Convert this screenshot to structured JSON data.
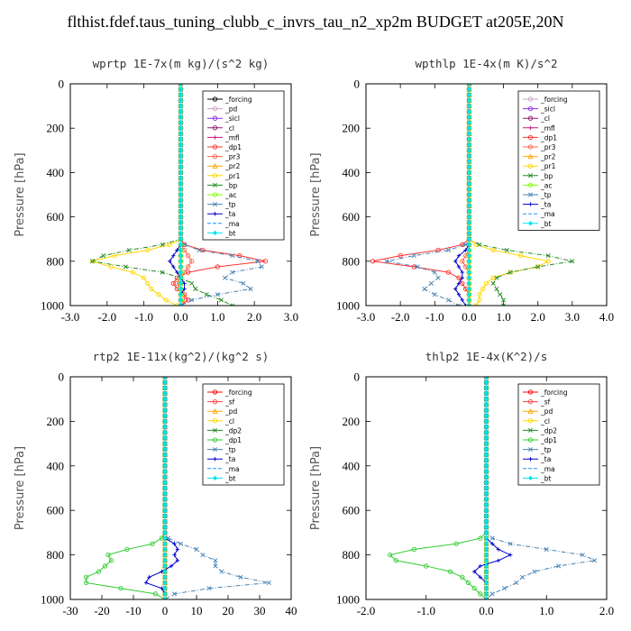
{
  "title": "flthist.fdef.taus_tuning_clubb_c_invrs_tau_n2_xp2m  BUDGET at205E,20N",
  "chart_data": [
    {
      "type": "line",
      "title": "wprtp  1E-7x(m kg)/(s^2 kg)",
      "ylabel": "Pressure [hPa]",
      "xlim": [
        -3.0,
        3.0
      ],
      "ylim": [
        1000,
        0
      ],
      "xticks": [
        "-3.0",
        "-2.0",
        "-1.0",
        "0.0",
        "1.0",
        "2.0",
        "3.0"
      ],
      "yticks": [
        "0",
        "200",
        "400",
        "600",
        "800",
        "1000"
      ],
      "legend_position": "top-right",
      "levels": [
        700,
        725,
        750,
        775,
        800,
        825,
        850,
        875,
        900,
        925,
        950,
        975,
        1000
      ],
      "series": [
        {
          "name": "_forcing",
          "color": "#000000",
          "marker": "o",
          "values": [
            0,
            0,
            0,
            0,
            0,
            0,
            0,
            0,
            0,
            0,
            0,
            0,
            0
          ]
        },
        {
          "name": "_pd",
          "color": "#c8a2c8",
          "marker": "o",
          "values": [
            0,
            0,
            0,
            0,
            0,
            0,
            0,
            0,
            0,
            0,
            0,
            0,
            0
          ]
        },
        {
          "name": "_sicl",
          "color": "#8a2be2",
          "marker": "o",
          "values": [
            0,
            0,
            0,
            0,
            0,
            0,
            0,
            0,
            0,
            0,
            0,
            0,
            0
          ]
        },
        {
          "name": "_cl",
          "color": "#8b1a6b",
          "marker": "o",
          "values": [
            0,
            0,
            0,
            0,
            0,
            0,
            0,
            0,
            0,
            0,
            0,
            0,
            0
          ]
        },
        {
          "name": "_mfl",
          "color": "#c71585",
          "marker": "+",
          "values": [
            0,
            0,
            0,
            0,
            0,
            0,
            0,
            0,
            0,
            0,
            0,
            0,
            0
          ]
        },
        {
          "name": "_dp1",
          "color": "#ff3030",
          "marker": "o",
          "values": [
            0,
            0.1,
            0.6,
            1.6,
            2.3,
            1.0,
            0.2,
            -0.1,
            -0.2,
            -0.1,
            0.1,
            0.2,
            0
          ]
        },
        {
          "name": "_pr3",
          "color": "#ff6347",
          "marker": "o",
          "values": [
            0,
            0,
            0.1,
            0.2,
            0.3,
            0.2,
            0.1,
            0,
            -0.1,
            0,
            0.1,
            0.1,
            0
          ]
        },
        {
          "name": "_pr2",
          "color": "#ffa500",
          "marker": "^",
          "values": [
            0,
            0,
            0,
            0,
            0,
            0,
            0,
            0,
            0,
            0,
            0,
            0,
            0
          ]
        },
        {
          "name": "_pr1",
          "color": "#ffd700",
          "marker": "o",
          "values": [
            0,
            -0.3,
            -0.9,
            -1.8,
            -2.4,
            -1.9,
            -1.3,
            -1.0,
            -0.9,
            -0.8,
            -0.6,
            -0.4,
            -0.1
          ]
        },
        {
          "name": "_bp",
          "color": "#228b22",
          "marker": "x",
          "values": [
            0,
            -0.5,
            -1.4,
            -2.1,
            -2.4,
            -1.5,
            -0.5,
            0,
            0.3,
            0.4,
            0.7,
            1.1,
            1.4
          ]
        },
        {
          "name": "_ac",
          "color": "#7fff00",
          "marker": "o",
          "values": [
            0,
            0,
            0,
            0,
            0,
            0,
            0,
            0,
            0,
            0,
            0,
            0,
            0
          ]
        },
        {
          "name": "_tp",
          "color": "#4682b4",
          "marker": "x",
          "values": [
            0,
            0.1,
            0.5,
            1.4,
            2.1,
            2.2,
            1.4,
            1.2,
            1.7,
            1.9,
            1.0,
            0.3,
            0
          ]
        },
        {
          "name": "_ta",
          "color": "#0000cd",
          "marker": "+",
          "values": [
            0,
            0,
            -0.1,
            -0.2,
            -0.3,
            -0.2,
            -0.1,
            0,
            0.1,
            0.1,
            0,
            0,
            0
          ]
        },
        {
          "name": "_ma",
          "color": "#1e90ff",
          "marker": "-",
          "values": [
            0,
            0,
            0,
            0,
            0,
            0,
            0,
            0,
            0,
            0,
            0,
            0,
            0
          ]
        },
        {
          "name": "_bt",
          "color": "#00e5ee",
          "marker": "D",
          "values": [
            0,
            0,
            0,
            0,
            0,
            0,
            0,
            0,
            0,
            0,
            0,
            0,
            0
          ]
        }
      ]
    },
    {
      "type": "line",
      "title": "wpthlp  1E-4x(m K)/s^2",
      "ylabel": "Pressure [hPa]",
      "xlim": [
        -3.0,
        4.0
      ],
      "ylim": [
        1000,
        0
      ],
      "xticks": [
        "-3.0",
        "-2.0",
        "-1.0",
        "0.0",
        "1.0",
        "2.0",
        "3.0",
        "4.0"
      ],
      "yticks": [
        "0",
        "200",
        "400",
        "600",
        "800",
        "1000"
      ],
      "legend_position": "top-right",
      "levels": [
        700,
        725,
        750,
        775,
        800,
        825,
        850,
        875,
        900,
        925,
        950,
        975,
        1000
      ],
      "series": [
        {
          "name": "_forcing",
          "color": "#c8a2c8",
          "marker": "o",
          "values": [
            0,
            0,
            0,
            0,
            0,
            0,
            0,
            0,
            0,
            0,
            0,
            0,
            0
          ]
        },
        {
          "name": "_sicl",
          "color": "#8a2be2",
          "marker": "o",
          "values": [
            0,
            0,
            0,
            0,
            0,
            0,
            0,
            0,
            0,
            0,
            0,
            0,
            0
          ]
        },
        {
          "name": "_cl",
          "color": "#8b1a6b",
          "marker": "o",
          "values": [
            0,
            0,
            0,
            0,
            0,
            0,
            0,
            0,
            0,
            0,
            0,
            0,
            0
          ]
        },
        {
          "name": "_mfl",
          "color": "#c71585",
          "marker": "+",
          "values": [
            0,
            0,
            0,
            0,
            0,
            0,
            0,
            0,
            0,
            0,
            0,
            0,
            0
          ]
        },
        {
          "name": "_dp1",
          "color": "#ff3030",
          "marker": "o",
          "values": [
            0,
            -0.2,
            -0.9,
            -2.0,
            -2.8,
            -1.6,
            -0.6,
            -0.3,
            -0.2,
            -0.1,
            0,
            0,
            0
          ]
        },
        {
          "name": "_pr3",
          "color": "#ff6347",
          "marker": "o",
          "values": [
            0,
            0,
            0,
            -0.1,
            -0.2,
            -0.1,
            0,
            0,
            0,
            0,
            0,
            0,
            0
          ]
        },
        {
          "name": "_pr2",
          "color": "#ffa500",
          "marker": "^",
          "values": [
            0,
            0,
            0,
            0,
            0,
            0,
            0,
            0,
            0,
            0,
            0,
            0,
            0
          ]
        },
        {
          "name": "_pr1",
          "color": "#ffd700",
          "marker": "o",
          "values": [
            0,
            0.2,
            0.7,
            1.5,
            2.3,
            2.0,
            1.2,
            0.7,
            0.5,
            0.4,
            0.3,
            0.3,
            0.2
          ]
        },
        {
          "name": "_bp",
          "color": "#228b22",
          "marker": "x",
          "values": [
            0,
            0.3,
            1.1,
            2.3,
            3.0,
            2.0,
            1.2,
            0.8,
            0.7,
            0.8,
            0.9,
            1.0,
            1.0
          ]
        },
        {
          "name": "_ac",
          "color": "#7fff00",
          "marker": "o",
          "values": [
            0,
            0,
            0,
            0,
            0,
            0,
            0,
            0,
            0,
            0,
            0,
            0,
            0
          ]
        },
        {
          "name": "_tp",
          "color": "#4682b4",
          "marker": "x",
          "values": [
            0,
            -0.1,
            -0.6,
            -1.6,
            -2.4,
            -1.5,
            -1.0,
            -0.9,
            -1.1,
            -1.3,
            -1.0,
            -0.6,
            -0.3
          ]
        },
        {
          "name": "_ta",
          "color": "#0000cd",
          "marker": "+",
          "values": [
            0,
            0,
            -0.1,
            -0.3,
            -0.4,
            -0.3,
            -0.2,
            -0.2,
            -0.3,
            -0.4,
            -0.3,
            -0.2,
            -0.1
          ]
        },
        {
          "name": "_ma",
          "color": "#1e90ff",
          "marker": "-",
          "values": [
            0,
            0,
            0,
            0,
            0,
            0,
            0,
            0,
            0,
            0,
            0,
            0,
            0
          ]
        },
        {
          "name": "_bt",
          "color": "#00e5ee",
          "marker": "D",
          "values": [
            0,
            0,
            0,
            0,
            0,
            0,
            0,
            0,
            0,
            0,
            0,
            0,
            0
          ]
        }
      ]
    },
    {
      "type": "line",
      "title": "rtp2  1E-11x(kg^2)/(kg^2 s)",
      "ylabel": "Pressure [hPa]",
      "xlim": [
        -30,
        40
      ],
      "ylim": [
        1000,
        0
      ],
      "xticks": [
        "-30",
        "-20",
        "-10",
        "0",
        "10",
        "20",
        "30",
        "40"
      ],
      "yticks": [
        "0",
        "200",
        "400",
        "600",
        "800",
        "1000"
      ],
      "legend_position": "top-right",
      "levels": [
        700,
        725,
        750,
        775,
        800,
        825,
        850,
        875,
        900,
        925,
        950,
        975,
        1000
      ],
      "series": [
        {
          "name": "_forcing",
          "color": "#ff0000",
          "marker": "o",
          "values": [
            0,
            0,
            0,
            0,
            0,
            0,
            0,
            0,
            0,
            0,
            0,
            0,
            0
          ]
        },
        {
          "name": "_sf",
          "color": "#ff4040",
          "marker": "o",
          "values": [
            0,
            0,
            0,
            0,
            0,
            0,
            0,
            0,
            0,
            0,
            0,
            0,
            0
          ]
        },
        {
          "name": "_pd",
          "color": "#ffa500",
          "marker": "^",
          "values": [
            0,
            0,
            0,
            0,
            0,
            0,
            0,
            0,
            0,
            0,
            0,
            0,
            0
          ]
        },
        {
          "name": "_cl",
          "color": "#ffd700",
          "marker": "o",
          "values": [
            0,
            0,
            0,
            0,
            0,
            0,
            0,
            0,
            0,
            0,
            0,
            0,
            0
          ]
        },
        {
          "name": "_dp2",
          "color": "#228b22",
          "marker": "x",
          "values": [
            0,
            0,
            0,
            0,
            0,
            0,
            0,
            0,
            0,
            0,
            0,
            0,
            0
          ]
        },
        {
          "name": "_dp1",
          "color": "#32cd32",
          "marker": "o",
          "values": [
            0,
            -1,
            -4,
            -12,
            -18,
            -17,
            -19,
            -21,
            -25,
            -25,
            -14,
            -3,
            0
          ]
        },
        {
          "name": "_tp",
          "color": "#4682b4",
          "marker": "x",
          "values": [
            0,
            1,
            5,
            10,
            12,
            16,
            16,
            18,
            24,
            33,
            14,
            3,
            0
          ]
        },
        {
          "name": "_ta",
          "color": "#0000cd",
          "marker": "+",
          "values": [
            0,
            0,
            3,
            4,
            3,
            4,
            2,
            -1,
            -5,
            -6,
            -1,
            0,
            0
          ]
        },
        {
          "name": "_ma",
          "color": "#1e90ff",
          "marker": "-",
          "values": [
            0,
            0,
            0,
            0,
            0,
            0,
            0,
            0,
            0,
            0,
            0,
            0,
            0
          ]
        },
        {
          "name": "_bt",
          "color": "#00e5ee",
          "marker": "D",
          "values": [
            0,
            0,
            0,
            0,
            0,
            0,
            0,
            0,
            0,
            0,
            0,
            0,
            0
          ]
        }
      ]
    },
    {
      "type": "line",
      "title": "thlp2  1E-4x(K^2)/s",
      "ylabel": "Pressure [hPa]",
      "xlim": [
        -2.0,
        2.0
      ],
      "ylim": [
        1000,
        0
      ],
      "xticks": [
        "-2.0",
        "-1.0",
        "0.0",
        "1.0",
        "2.0"
      ],
      "yticks": [
        "0",
        "200",
        "400",
        "600",
        "800",
        "1000"
      ],
      "legend_position": "top-right",
      "levels": [
        700,
        725,
        750,
        775,
        800,
        825,
        850,
        875,
        900,
        925,
        950,
        975,
        1000
      ],
      "series": [
        {
          "name": "_forcing",
          "color": "#ff0000",
          "marker": "o",
          "values": [
            0,
            0,
            0,
            0,
            0,
            0,
            0,
            0,
            0,
            0,
            0,
            0,
            0
          ]
        },
        {
          "name": "_sf",
          "color": "#ff4040",
          "marker": "o",
          "values": [
            0,
            0,
            0,
            0,
            0,
            0,
            0,
            0,
            0,
            0,
            0,
            0,
            0
          ]
        },
        {
          "name": "_pd",
          "color": "#ffa500",
          "marker": "^",
          "values": [
            0,
            0,
            0,
            0,
            0,
            0,
            0,
            0,
            0,
            0,
            0,
            0,
            0
          ]
        },
        {
          "name": "_cl",
          "color": "#ffd700",
          "marker": "o",
          "values": [
            0,
            0,
            0,
            0,
            0,
            0,
            0,
            0,
            0,
            0,
            0,
            0,
            0
          ]
        },
        {
          "name": "_dp2",
          "color": "#228b22",
          "marker": "x",
          "values": [
            0,
            0,
            0,
            0,
            0,
            0,
            0,
            0,
            0,
            0,
            0,
            0,
            0
          ]
        },
        {
          "name": "_dp1",
          "color": "#32cd32",
          "marker": "o",
          "values": [
            0,
            -0.1,
            -0.5,
            -1.2,
            -1.6,
            -1.5,
            -1.0,
            -0.6,
            -0.4,
            -0.3,
            -0.2,
            -0.1,
            0
          ]
        },
        {
          "name": "_tp",
          "color": "#4682b4",
          "marker": "x",
          "values": [
            0,
            0.1,
            0.4,
            1.0,
            1.6,
            1.8,
            1.2,
            0.8,
            0.6,
            0.5,
            0.3,
            0.1,
            0
          ]
        },
        {
          "name": "_ta",
          "color": "#0000cd",
          "marker": "+",
          "values": [
            0,
            0,
            0.1,
            0.2,
            0.4,
            0.2,
            -0.1,
            -0.2,
            -0.1,
            0,
            0,
            0,
            0
          ]
        },
        {
          "name": "_ma",
          "color": "#1e90ff",
          "marker": "-",
          "values": [
            0,
            0,
            0,
            0,
            0,
            0,
            0,
            0,
            0,
            0,
            0,
            0,
            0
          ]
        },
        {
          "name": "_bt",
          "color": "#00e5ee",
          "marker": "D",
          "values": [
            0,
            0,
            0,
            0,
            0,
            0,
            0,
            0,
            0,
            0,
            0,
            0,
            0
          ]
        }
      ]
    }
  ]
}
